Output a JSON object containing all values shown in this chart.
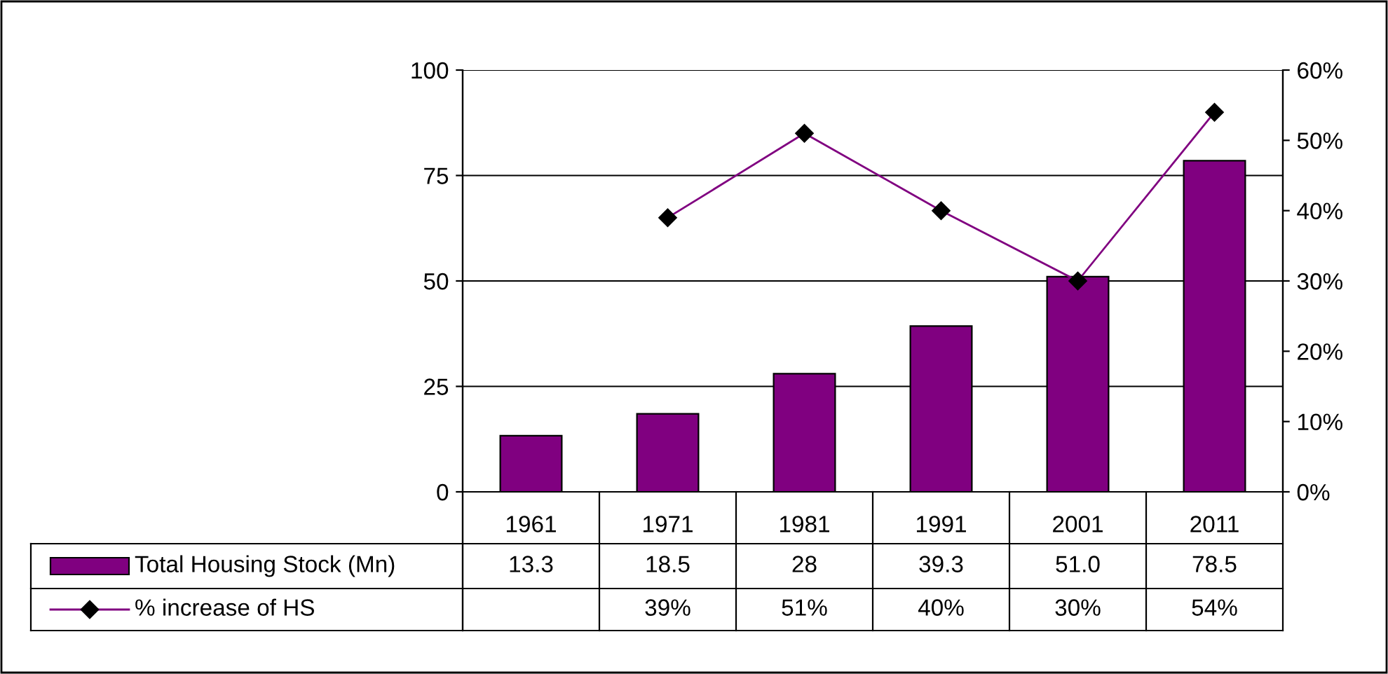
{
  "chart_data": {
    "type": "bar",
    "categories": [
      "1961",
      "1971",
      "1981",
      "1991",
      "2001",
      "2011"
    ],
    "series": [
      {
        "name": "Total Housing Stock (Mn)",
        "color": "#800080",
        "values": [
          13.3,
          18.5,
          28,
          39.3,
          51.0,
          78.5
        ],
        "value_labels": [
          "13.3",
          "18.5",
          "28",
          "39.3",
          "51.0",
          "78.5"
        ]
      },
      {
        "name": "% increase of HS",
        "type": "line",
        "axis": "y2",
        "color": "#800080",
        "marker": "diamond",
        "values": [
          null,
          39,
          51,
          40,
          30,
          54
        ],
        "value_labels": [
          null,
          "39%",
          "51%",
          "40%",
          "30%",
          "54%"
        ]
      }
    ],
    "ylim": [
      0,
      100
    ],
    "yticks": [
      0,
      25,
      50,
      75,
      100
    ],
    "y2lim": [
      0,
      60
    ],
    "y2ticks": [
      {
        "value": 0,
        "label": "0%"
      },
      {
        "value": 10,
        "label": "10%"
      },
      {
        "value": 20,
        "label": "20%"
      },
      {
        "value": 30,
        "label": "30%"
      },
      {
        "value": 40,
        "label": "40%"
      },
      {
        "value": 50,
        "label": "50%"
      },
      {
        "value": 60,
        "label": "60%"
      }
    ],
    "grid": "y",
    "legend": "bottom left"
  }
}
